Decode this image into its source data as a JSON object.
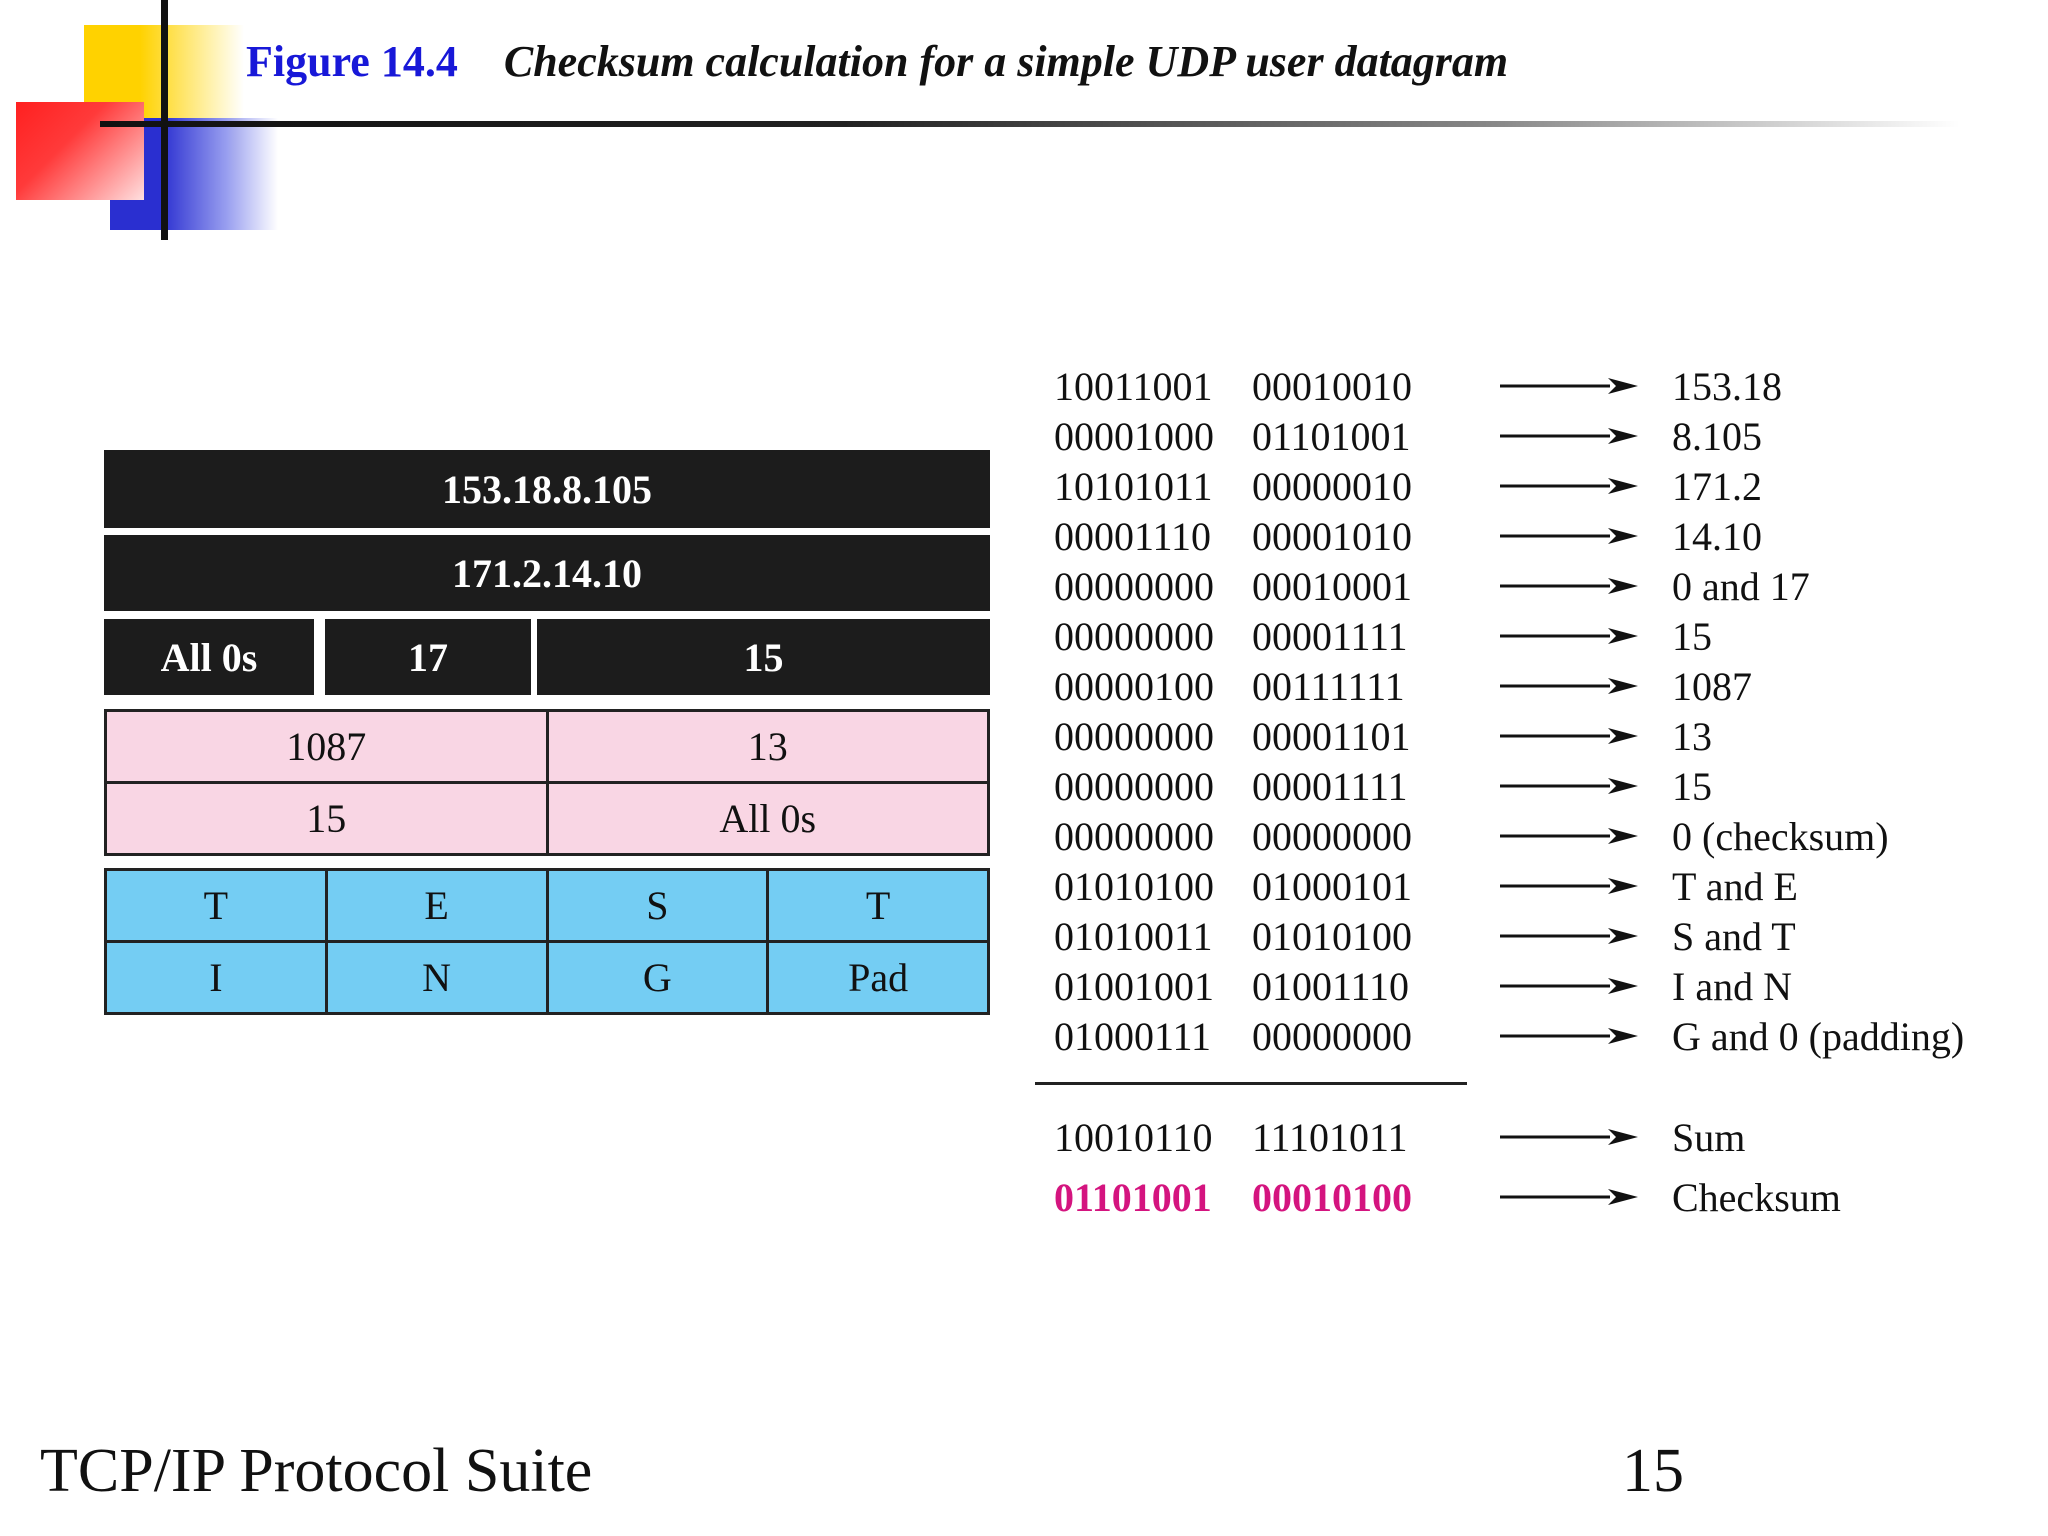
{
  "header": {
    "figure_number": "Figure 14.4",
    "caption": "Checksum calculation for a simple UDP user datagram"
  },
  "diagram": {
    "source_ip": "153.18.8.105",
    "destination_ip": "171.2.14.10",
    "pseudo_header_row": [
      "All 0s",
      "17",
      "15"
    ],
    "udp_header_rows": [
      [
        "1087",
        "13"
      ],
      [
        "15",
        "All 0s"
      ]
    ],
    "data_rows": [
      [
        "T",
        "E",
        "S",
        "T"
      ],
      [
        "I",
        "N",
        "G",
        "Pad"
      ]
    ]
  },
  "calculation": {
    "rows": [
      {
        "bin1": "10011001",
        "bin2": "00010010",
        "label": "153.18"
      },
      {
        "bin1": "00001000",
        "bin2": "01101001",
        "label": "8.105"
      },
      {
        "bin1": "10101011",
        "bin2": "00000010",
        "label": "171.2"
      },
      {
        "bin1": "00001110",
        "bin2": "00001010",
        "label": "14.10"
      },
      {
        "bin1": "00000000",
        "bin2": "00010001",
        "label": "0 and 17"
      },
      {
        "bin1": "00000000",
        "bin2": "00001111",
        "label": "15"
      },
      {
        "bin1": "00000100",
        "bin2": "00111111",
        "label": "1087"
      },
      {
        "bin1": "00000000",
        "bin2": "00001101",
        "label": "13"
      },
      {
        "bin1": "00000000",
        "bin2": "00001111",
        "label": "15"
      },
      {
        "bin1": "00000000",
        "bin2": "00000000",
        "label": "0 (checksum)"
      },
      {
        "bin1": "01010100",
        "bin2": "01000101",
        "label": "T and E"
      },
      {
        "bin1": "01010011",
        "bin2": "01010100",
        "label": "S and T"
      },
      {
        "bin1": "01001001",
        "bin2": "01001110",
        "label": "I and N"
      },
      {
        "bin1": "01000111",
        "bin2": "00000000",
        "label": "G and 0 (padding)"
      }
    ],
    "sum": {
      "bin1": "10010110",
      "bin2": "11101011",
      "label": "Sum"
    },
    "checksum": {
      "bin1": "01101001",
      "bin2": "00010100",
      "label": "Checksum"
    }
  },
  "colors": {
    "figure_number": "#1818d8",
    "checksum_highlight": "#d4147f",
    "pink_cells": "#f9d6e4",
    "blue_cells": "#74cdf3",
    "dark_bars": "#1c1c1c"
  },
  "footer": {
    "title": "TCP/IP Protocol Suite",
    "page_number": "15"
  }
}
